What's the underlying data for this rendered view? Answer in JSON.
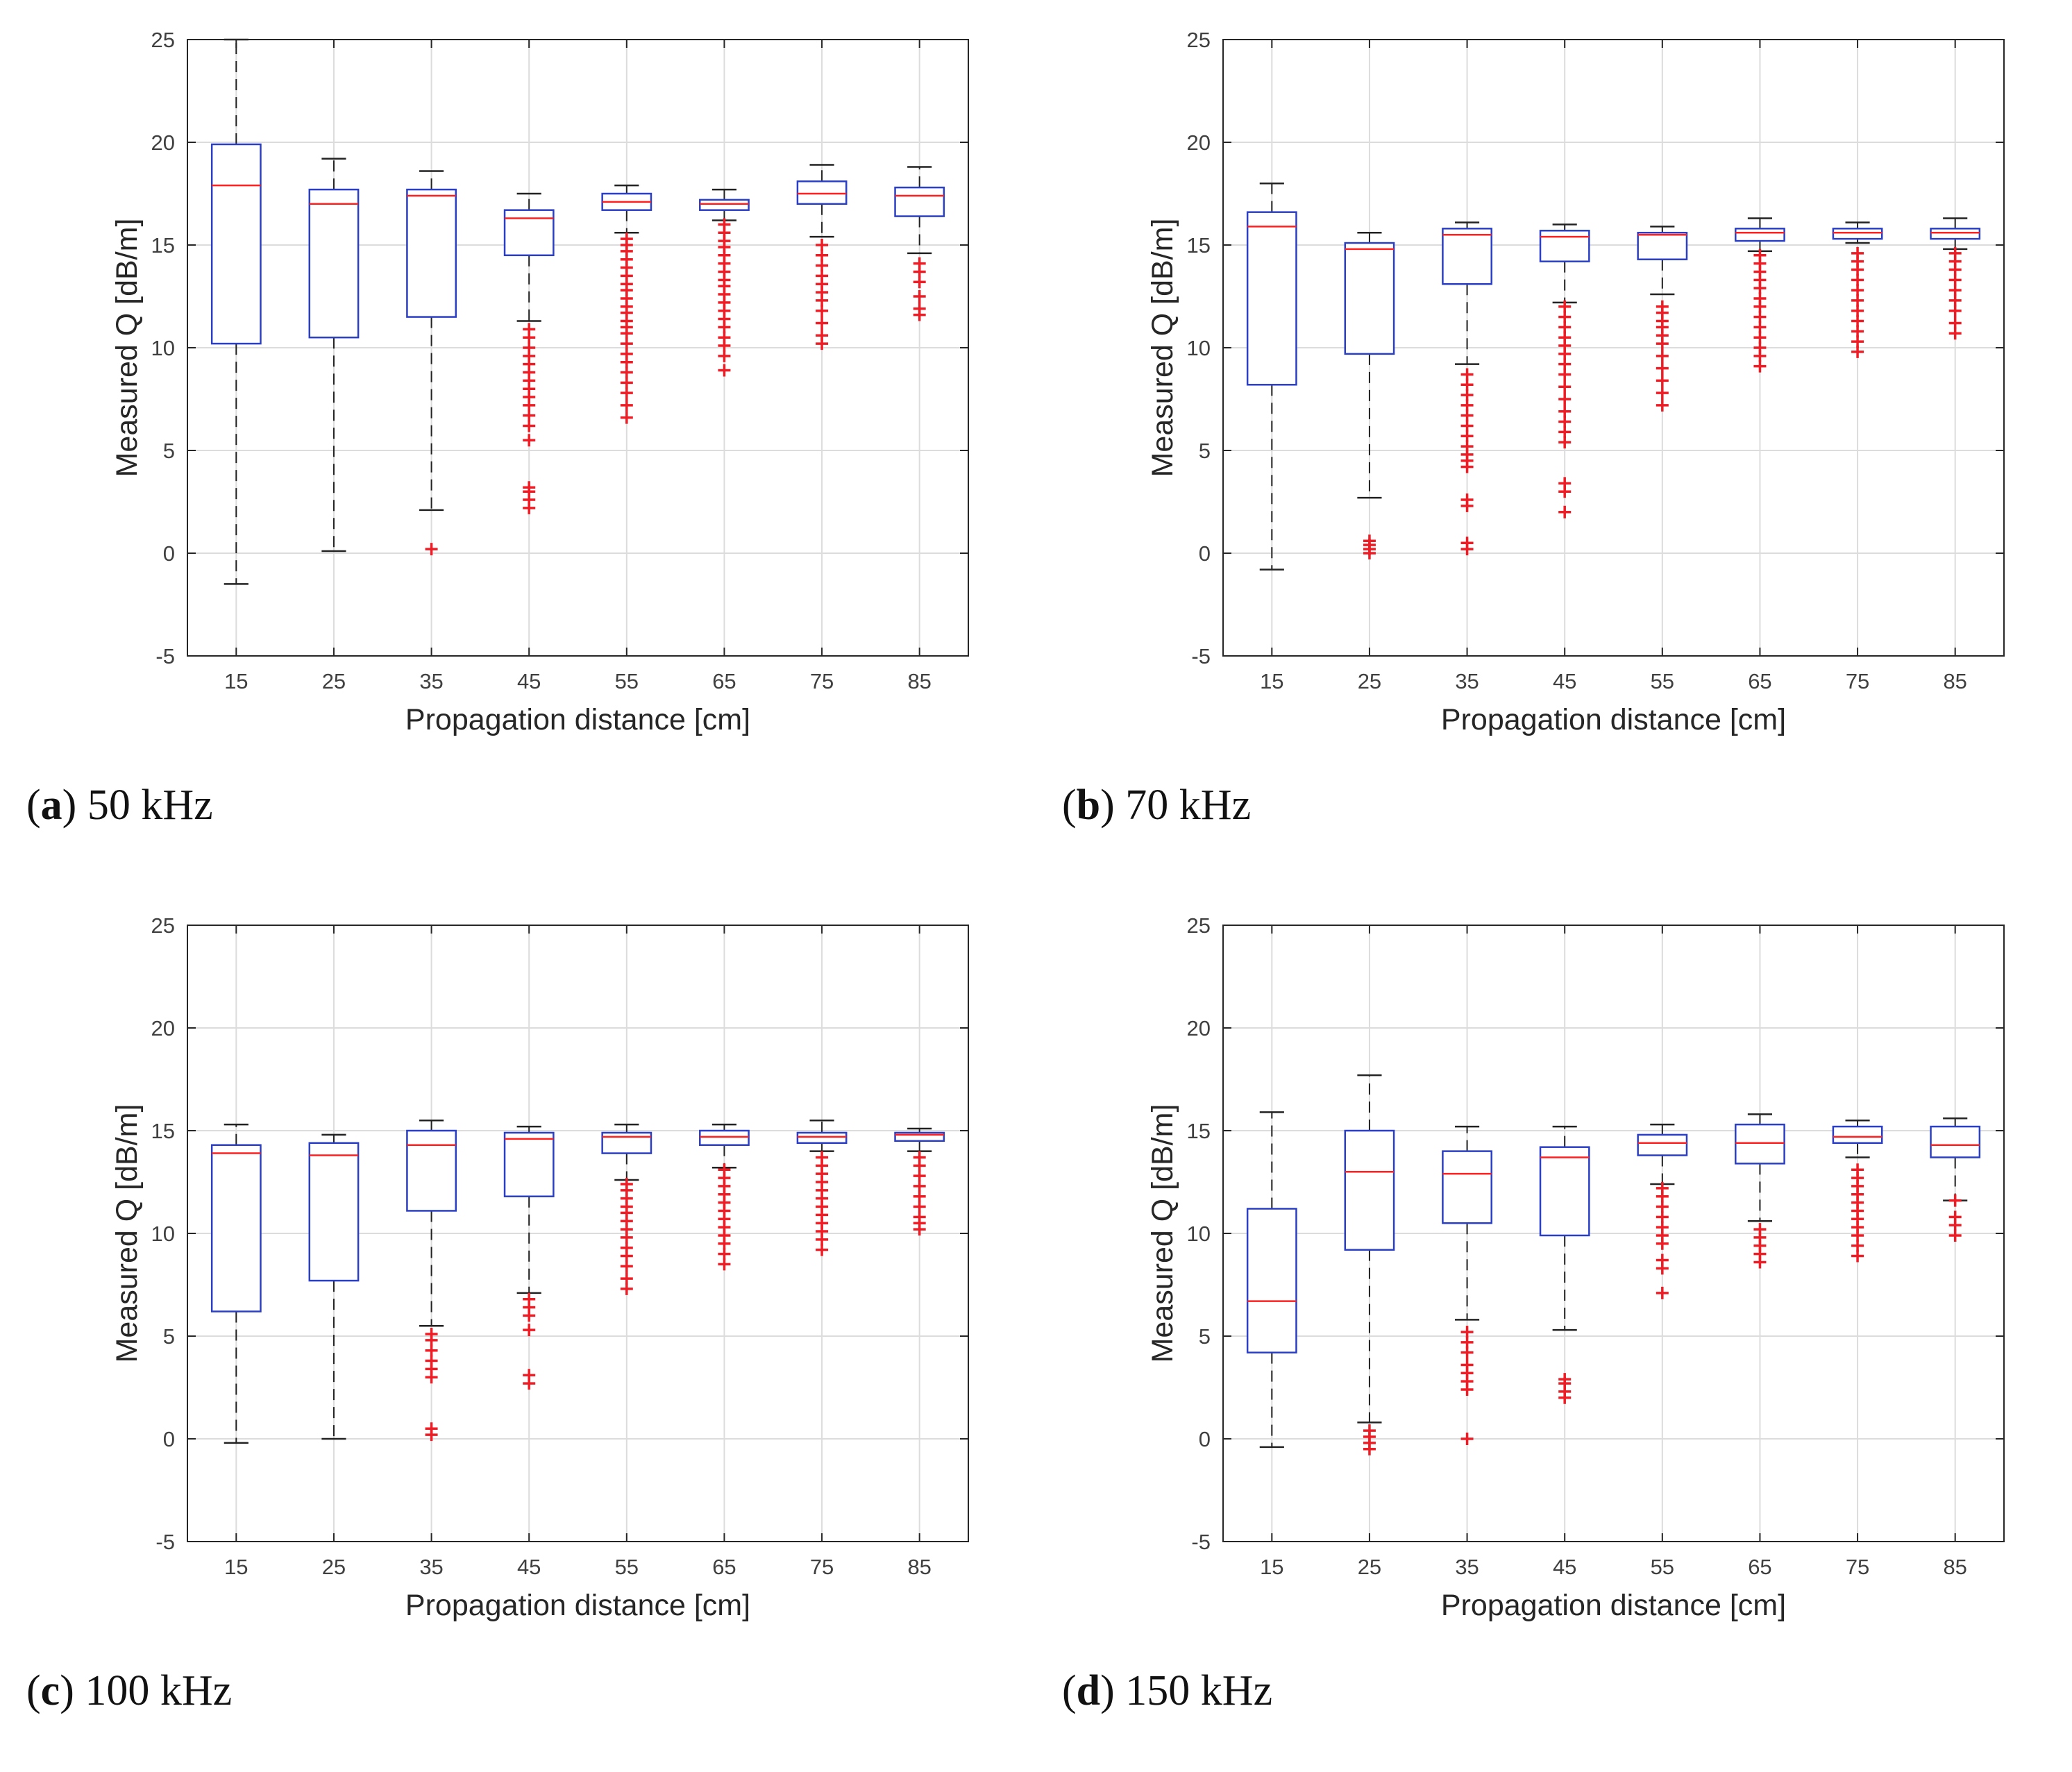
{
  "colors": {
    "box": "#2b3fc4",
    "median": "#ff2020",
    "whisker": "#222222",
    "outlier": "#ee1c24",
    "grid": "#dcdcdc",
    "axis": "#262626"
  },
  "chart_data": [
    {
      "type": "box",
      "panel_letter": "a",
      "panel_text": "50 kHz",
      "xlabel": "Propagation distance [cm]",
      "ylabel": "Measured Q [dB/m]",
      "ylim": [
        -5,
        25
      ],
      "yticks": [
        "-5",
        "0",
        "5",
        "10",
        "15",
        "20",
        "25"
      ],
      "categories": [
        "15",
        "25",
        "35",
        "45",
        "55",
        "65",
        "75",
        "85"
      ],
      "grid": true,
      "boxes": [
        {
          "min": -1.5,
          "q1": 10.2,
          "median": 17.9,
          "q3": 19.9,
          "max": 25.0,
          "outliers": []
        },
        {
          "min": 0.1,
          "q1": 10.5,
          "median": 17.0,
          "q3": 17.7,
          "max": 19.2,
          "outliers": []
        },
        {
          "min": 2.1,
          "q1": 11.5,
          "median": 17.4,
          "q3": 17.7,
          "max": 18.6,
          "outliers": [
            0.2
          ]
        },
        {
          "min": 11.3,
          "q1": 14.5,
          "median": 16.3,
          "q3": 16.7,
          "max": 17.5,
          "outliers": [
            2.2,
            2.6,
            3.0,
            3.2,
            5.5,
            6.2,
            6.7,
            7.2,
            7.6,
            8.0,
            8.4,
            8.8,
            9.2,
            9.6,
            10.0,
            10.5,
            10.9
          ]
        },
        {
          "min": 15.6,
          "q1": 16.7,
          "median": 17.1,
          "q3": 17.5,
          "max": 17.9,
          "outliers": [
            6.6,
            7.2,
            7.8,
            8.3,
            8.8,
            9.3,
            9.7,
            10.2,
            10.7,
            11.0,
            11.3,
            11.7,
            12.0,
            12.4,
            12.8,
            13.1,
            13.5,
            13.9,
            14.3,
            14.7,
            15.0,
            15.3
          ]
        },
        {
          "min": 16.2,
          "q1": 16.7,
          "median": 17.0,
          "q3": 17.2,
          "max": 17.7,
          "outliers": [
            8.9,
            9.6,
            10.1,
            10.5,
            11.0,
            11.4,
            11.8,
            12.2,
            12.6,
            13.0,
            13.3,
            13.7,
            14.1,
            14.5,
            14.9,
            15.2,
            15.6,
            16.0
          ]
        },
        {
          "min": 15.4,
          "q1": 17.0,
          "median": 17.5,
          "q3": 18.1,
          "max": 18.9,
          "outliers": [
            10.2,
            10.6,
            11.2,
            11.8,
            12.3,
            12.7,
            13.1,
            13.5,
            14.0,
            14.5,
            15.0
          ]
        },
        {
          "min": 14.6,
          "q1": 16.4,
          "median": 17.4,
          "q3": 17.8,
          "max": 18.8,
          "outliers": [
            11.6,
            11.9,
            12.5,
            13.2,
            13.7,
            14.1
          ]
        }
      ]
    },
    {
      "type": "box",
      "panel_letter": "b",
      "panel_text": "70 kHz",
      "xlabel": "Propagation distance [cm]",
      "ylabel": "Measured Q [dB/m]",
      "ylim": [
        -5,
        25
      ],
      "yticks": [
        "-5",
        "0",
        "5",
        "10",
        "15",
        "20",
        "25"
      ],
      "categories": [
        "15",
        "25",
        "35",
        "45",
        "55",
        "65",
        "75",
        "85"
      ],
      "grid": true,
      "boxes": [
        {
          "min": -0.8,
          "q1": 8.2,
          "median": 15.9,
          "q3": 16.6,
          "max": 18.0,
          "outliers": []
        },
        {
          "min": 2.7,
          "q1": 9.7,
          "median": 14.8,
          "q3": 15.1,
          "max": 15.6,
          "outliers": [
            0.0,
            0.2,
            0.4,
            0.6
          ]
        },
        {
          "min": 9.2,
          "q1": 13.1,
          "median": 15.5,
          "q3": 15.8,
          "max": 16.1,
          "outliers": [
            0.2,
            0.5,
            2.3,
            2.6,
            4.2,
            4.5,
            4.8,
            5.2,
            5.7,
            6.2,
            6.7,
            7.2,
            7.7,
            8.2,
            8.7
          ]
        },
        {
          "min": 12.2,
          "q1": 14.2,
          "median": 15.4,
          "q3": 15.7,
          "max": 16.0,
          "outliers": [
            2.0,
            3.0,
            3.4,
            5.4,
            5.9,
            6.4,
            6.9,
            7.5,
            8.1,
            8.7,
            9.2,
            9.7,
            10.1,
            10.5,
            11.0,
            11.5,
            12.0
          ]
        },
        {
          "min": 12.6,
          "q1": 14.3,
          "median": 15.5,
          "q3": 15.6,
          "max": 15.9,
          "outliers": [
            7.2,
            7.8,
            8.4,
            9.0,
            9.6,
            10.2,
            10.6,
            11.0,
            11.3,
            11.7,
            12.0
          ]
        },
        {
          "min": 14.7,
          "q1": 15.2,
          "median": 15.6,
          "q3": 15.8,
          "max": 16.3,
          "outliers": [
            9.1,
            9.6,
            10.0,
            10.5,
            11.0,
            11.5,
            12.0,
            12.4,
            12.9,
            13.3,
            13.7,
            14.1,
            14.5
          ]
        },
        {
          "min": 15.1,
          "q1": 15.3,
          "median": 15.6,
          "q3": 15.8,
          "max": 16.1,
          "outliers": [
            9.8,
            10.3,
            10.8,
            11.3,
            11.8,
            12.3,
            12.8,
            13.3,
            13.8,
            14.2,
            14.6
          ]
        },
        {
          "min": 14.8,
          "q1": 15.3,
          "median": 15.6,
          "q3": 15.8,
          "max": 16.3,
          "outliers": [
            10.7,
            11.2,
            11.8,
            12.3,
            12.8,
            13.3,
            13.8,
            14.2,
            14.6
          ]
        }
      ]
    },
    {
      "type": "box",
      "panel_letter": "c",
      "panel_text": "100 kHz",
      "xlabel": "Propagation distance [cm]",
      "ylabel": "Measured Q [dB/m]",
      "ylim": [
        -5,
        25
      ],
      "yticks": [
        "-5",
        "0",
        "5",
        "10",
        "15",
        "20",
        "25"
      ],
      "categories": [
        "15",
        "25",
        "35",
        "45",
        "55",
        "65",
        "75",
        "85"
      ],
      "grid": true,
      "boxes": [
        {
          "min": -0.2,
          "q1": 6.2,
          "median": 13.9,
          "q3": 14.3,
          "max": 15.3,
          "outliers": []
        },
        {
          "min": 0.0,
          "q1": 7.7,
          "median": 13.8,
          "q3": 14.4,
          "max": 14.8,
          "outliers": []
        },
        {
          "min": 5.5,
          "q1": 11.1,
          "median": 14.3,
          "q3": 15.0,
          "max": 15.5,
          "outliers": [
            0.2,
            0.5,
            3.0,
            3.4,
            3.8,
            4.3,
            4.8,
            5.1
          ]
        },
        {
          "min": 7.1,
          "q1": 11.8,
          "median": 14.6,
          "q3": 14.9,
          "max": 15.2,
          "outliers": [
            2.7,
            3.1,
            5.3,
            6.0,
            6.4,
            6.8
          ]
        },
        {
          "min": 12.6,
          "q1": 13.9,
          "median": 14.7,
          "q3": 14.9,
          "max": 15.3,
          "outliers": [
            7.3,
            7.8,
            8.4,
            8.9,
            9.3,
            9.8,
            10.2,
            10.6,
            11.0,
            11.3,
            11.7,
            12.1,
            12.4
          ]
        },
        {
          "min": 13.2,
          "q1": 14.3,
          "median": 14.7,
          "q3": 15.0,
          "max": 15.3,
          "outliers": [
            8.5,
            9.0,
            9.5,
            9.9,
            10.3,
            10.7,
            11.1,
            11.5,
            11.9,
            12.3,
            12.7,
            13.1
          ]
        },
        {
          "min": 14.0,
          "q1": 14.4,
          "median": 14.7,
          "q3": 14.9,
          "max": 15.5,
          "outliers": [
            9.2,
            9.7,
            10.1,
            10.5,
            10.9,
            11.3,
            11.7,
            12.1,
            12.5,
            12.9,
            13.3,
            13.7
          ]
        },
        {
          "min": 14.0,
          "q1": 14.5,
          "median": 14.8,
          "q3": 14.9,
          "max": 15.1,
          "outliers": [
            10.2,
            10.5,
            10.8,
            11.3,
            11.8,
            12.3,
            12.8,
            13.3,
            13.7
          ]
        }
      ]
    },
    {
      "type": "box",
      "panel_letter": "d",
      "panel_text": "150 kHz",
      "xlabel": "Propagation distance [cm]",
      "ylabel": "Measured Q [dB/m]",
      "ylim": [
        -5,
        25
      ],
      "yticks": [
        "-5",
        "0",
        "5",
        "10",
        "15",
        "20",
        "25"
      ],
      "categories": [
        "15",
        "25",
        "35",
        "45",
        "55",
        "65",
        "75",
        "85"
      ],
      "grid": true,
      "boxes": [
        {
          "min": -0.4,
          "q1": 4.2,
          "median": 6.7,
          "q3": 11.2,
          "max": 15.9,
          "outliers": []
        },
        {
          "min": 0.8,
          "q1": 9.2,
          "median": 13.0,
          "q3": 15.0,
          "max": 17.7,
          "outliers": [
            -0.5,
            -0.2,
            0.1,
            0.4
          ]
        },
        {
          "min": 5.8,
          "q1": 10.5,
          "median": 12.9,
          "q3": 14.0,
          "max": 15.2,
          "outliers": [
            0.0,
            2.4,
            2.8,
            3.2,
            3.6,
            4.2,
            4.7,
            5.2
          ]
        },
        {
          "min": 5.3,
          "q1": 9.9,
          "median": 13.7,
          "q3": 14.2,
          "max": 15.2,
          "outliers": [
            2.0,
            2.3,
            2.7,
            2.9
          ]
        },
        {
          "min": 12.4,
          "q1": 13.8,
          "median": 14.4,
          "q3": 14.8,
          "max": 15.3,
          "outliers": [
            7.1,
            8.3,
            8.7,
            9.5,
            9.9,
            10.3,
            10.8,
            11.3,
            11.8,
            12.2
          ]
        },
        {
          "min": 10.6,
          "q1": 13.4,
          "median": 14.4,
          "q3": 15.3,
          "max": 15.8,
          "outliers": [
            8.6,
            9.0,
            9.4,
            9.8,
            10.2
          ]
        },
        {
          "min": 13.7,
          "q1": 14.4,
          "median": 14.7,
          "q3": 15.2,
          "max": 15.5,
          "outliers": [
            8.9,
            9.4,
            9.9,
            10.3,
            10.7,
            11.1,
            11.5,
            11.9,
            12.3,
            12.7,
            13.1
          ]
        },
        {
          "min": 11.6,
          "q1": 13.7,
          "median": 14.3,
          "q3": 15.2,
          "max": 15.6,
          "outliers": [
            9.9,
            10.4,
            10.8,
            11.6
          ]
        }
      ]
    }
  ]
}
